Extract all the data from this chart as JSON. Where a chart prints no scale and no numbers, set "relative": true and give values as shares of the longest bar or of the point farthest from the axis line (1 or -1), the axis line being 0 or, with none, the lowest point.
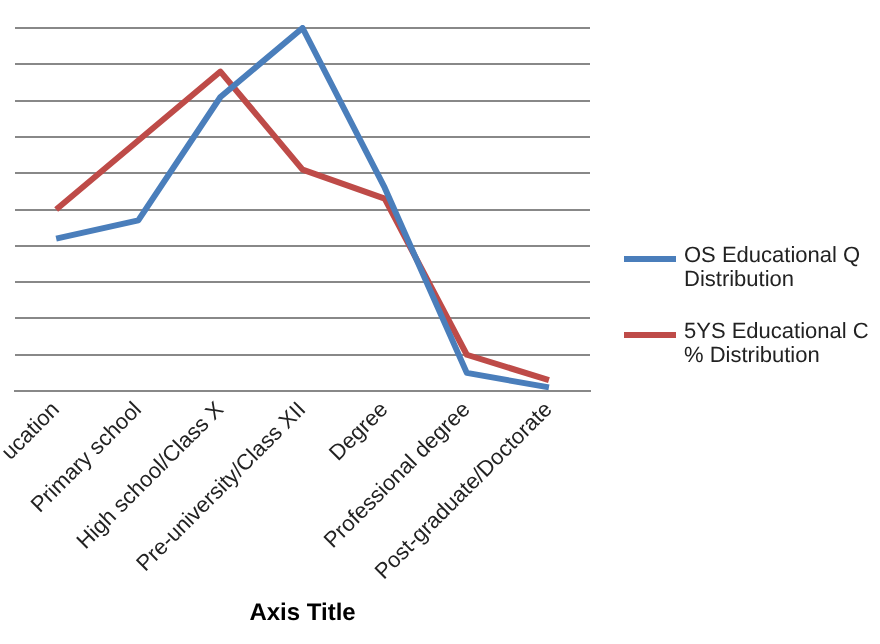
{
  "chart_data": {
    "type": "line",
    "xlabel": "Axis Title",
    "relative": true,
    "grid": "y",
    "legend": "right",
    "marker": "none",
    "categories": [
      "ucation",
      "Primary school",
      "High school/Class X",
      "Pre-university/Class XII",
      "Degree",
      "Professional degree",
      "Post-graduate/Doctorate"
    ],
    "series": [
      {
        "name": "OS Educational  Q Distribution",
        "color": "#4a7ebb",
        "values": [
          0.42,
          0.47,
          0.81,
          1,
          0.56,
          0.05,
          0.01
        ]
      },
      {
        "name": "5YS Educational  C % Distribution",
        "color": "#be4b48",
        "values": [
          0.5,
          0.69,
          0.88,
          0.61,
          0.53,
          0.1,
          0.03
        ]
      }
    ]
  }
}
